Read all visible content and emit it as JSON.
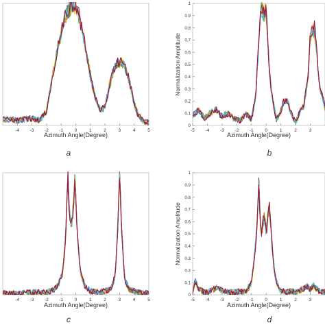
{
  "chart_data": [
    {
      "panel": "a",
      "type": "line",
      "caption": "a",
      "title": "",
      "xlabel": "Azimuth Angle(Degree)",
      "ylabel": "",
      "xlim": [
        -5,
        5
      ],
      "ylim": [
        0,
        1
      ],
      "xticks": [
        -4,
        -3,
        -2,
        -1,
        0,
        1,
        2,
        3,
        4,
        5
      ],
      "xtick_labels": [
        "-4",
        "-3",
        "-2",
        "-1",
        "0",
        "1",
        "2",
        "3",
        "4",
        "5"
      ],
      "yticks": [],
      "ytick_labels": [],
      "grid": false,
      "n_series": 7,
      "series_colors": [
        "#0072bd",
        "#d95319",
        "#edb120",
        "#7e2f8e",
        "#77ac30",
        "#4dbeee",
        "#a2142f"
      ],
      "envelope": {
        "x": [
          -5,
          -4.5,
          -4,
          -3.5,
          -3,
          -2.5,
          -2,
          -1.6,
          -1.2,
          -0.8,
          -0.5,
          -0.3,
          0,
          0.2,
          0.5,
          0.8,
          1.1,
          1.4,
          1.7,
          2,
          2.3,
          2.6,
          2.9,
          3.1,
          3.4,
          3.7,
          4,
          4.3,
          4.6,
          5
        ],
        "y": [
          0.05,
          0.05,
          0.04,
          0.05,
          0.06,
          0.04,
          0.12,
          0.4,
          0.65,
          0.85,
          0.95,
          0.99,
          0.97,
          0.9,
          0.75,
          0.55,
          0.35,
          0.2,
          0.12,
          0.15,
          0.32,
          0.46,
          0.52,
          0.52,
          0.47,
          0.35,
          0.18,
          0.08,
          0.04,
          0.02
        ]
      }
    },
    {
      "panel": "b",
      "type": "line",
      "caption": "b",
      "title": "",
      "xlabel": "Azimuth Angle(Degree)",
      "ylabel": "Normalization Amplitude",
      "xlim": [
        -5,
        4
      ],
      "ylim": [
        0,
        1
      ],
      "xticks": [
        -5,
        -4,
        -3,
        -2,
        -1,
        0,
        1,
        2,
        3
      ],
      "xtick_labels": [
        "-5",
        "-4",
        "-3",
        "-2",
        "-1",
        "0",
        "1",
        "2",
        "3"
      ],
      "yticks": [
        0,
        0.1,
        0.2,
        0.3,
        0.4,
        0.5,
        0.6,
        0.7,
        0.8,
        0.9,
        1
      ],
      "ytick_labels": [
        "0",
        "0.1",
        "0.2",
        "0.3",
        "0.4",
        "0.5",
        "0.6",
        "0.7",
        "0.8",
        "0.9",
        "1"
      ],
      "grid": false,
      "n_series": 7,
      "series_colors": [
        "#0072bd",
        "#d95319",
        "#edb120",
        "#7e2f8e",
        "#77ac30",
        "#4dbeee",
        "#a2142f"
      ],
      "envelope": {
        "x": [
          -5,
          -4.6,
          -4.2,
          -3.8,
          -3.4,
          -3,
          -2.6,
          -2.2,
          -1.8,
          -1.4,
          -1,
          -0.7,
          -0.5,
          -0.35,
          -0.2,
          0,
          0.1,
          0.25,
          0.45,
          0.7,
          0.95,
          1.2,
          1.45,
          1.7,
          2,
          2.3,
          2.55,
          2.85,
          3,
          3.3,
          3.6,
          4
        ],
        "y": [
          0.08,
          0.12,
          0.06,
          0.1,
          0.13,
          0.07,
          0.1,
          0.06,
          0.04,
          0.1,
          0.05,
          0.25,
          0.7,
          0.97,
          0.92,
          0.95,
          0.7,
          0.4,
          0.2,
          0.05,
          0.1,
          0.2,
          0.2,
          0.1,
          0.02,
          0.12,
          0.15,
          0.4,
          0.75,
          0.8,
          0.35,
          0.15
        ]
      }
    },
    {
      "panel": "c",
      "type": "line",
      "caption": "c",
      "title": "",
      "xlabel": "Azimuth Angle(Degree)",
      "ylabel": "",
      "xlim": [
        -5,
        5
      ],
      "ylim": [
        0,
        1
      ],
      "xticks": [
        -4,
        -3,
        -2,
        -1,
        0,
        1,
        2,
        3,
        4,
        5
      ],
      "xtick_labels": [
        "-4",
        "-3",
        "-2",
        "-1",
        "0",
        "1",
        "2",
        "3",
        "4",
        "5"
      ],
      "yticks": [],
      "ytick_labels": [],
      "grid": false,
      "n_series": 7,
      "series_colors": [
        "#0072bd",
        "#d95319",
        "#edb120",
        "#7e2f8e",
        "#77ac30",
        "#4dbeee",
        "#a2142f"
      ],
      "envelope": {
        "x": [
          -5,
          -4,
          -3,
          -2,
          -1.5,
          -1.2,
          -0.9,
          -0.7,
          -0.55,
          -0.45,
          -0.3,
          -0.15,
          -0.05,
          0.1,
          0.3,
          0.6,
          1,
          1.5,
          2,
          2.4,
          2.7,
          2.85,
          3,
          3.15,
          3.35,
          3.7,
          4.2,
          5
        ],
        "y": [
          0.01,
          0.01,
          0.02,
          0.02,
          0.04,
          0.08,
          0.18,
          0.45,
          1,
          0.7,
          0.55,
          0.75,
          0.98,
          0.5,
          0.2,
          0.08,
          0.03,
          0.02,
          0.03,
          0.05,
          0.15,
          0.5,
          0.98,
          0.5,
          0.12,
          0.04,
          0.02,
          0.01
        ]
      }
    },
    {
      "panel": "d",
      "type": "line",
      "caption": "d",
      "title": "",
      "xlabel": "Azimuth Angle(Degree)",
      "ylabel": "Normalization Amplitude",
      "xlim": [
        -5,
        4
      ],
      "ylim": [
        0,
        1
      ],
      "xticks": [
        -5,
        -4,
        -3,
        -2,
        -1,
        0,
        1,
        2,
        3
      ],
      "xtick_labels": [
        "-5",
        "-4",
        "-3",
        "-2",
        "-1",
        "0",
        "1",
        "2",
        "3"
      ],
      "yticks": [
        0,
        0.1,
        0.2,
        0.3,
        0.4,
        0.5,
        0.6,
        0.7,
        0.8,
        0.9,
        1
      ],
      "ytick_labels": [
        "0",
        "0.1",
        "0.2",
        "0.3",
        "0.4",
        "0.5",
        "0.6",
        "0.7",
        "0.8",
        "0.9",
        "1"
      ],
      "grid": false,
      "n_series": 7,
      "series_colors": [
        "#0072bd",
        "#d95319",
        "#edb120",
        "#7e2f8e",
        "#77ac30",
        "#4dbeee",
        "#a2142f"
      ],
      "envelope": {
        "x": [
          -5,
          -4.8,
          -4.6,
          -4.2,
          -3.8,
          -3.4,
          -3,
          -2.6,
          -2.2,
          -1.8,
          -1.4,
          -1,
          -0.8,
          -0.6,
          -0.5,
          -0.4,
          -0.3,
          -0.2,
          -0.1,
          0,
          0.2,
          0.4,
          0.6,
          0.9,
          1.3,
          1.7,
          2.1,
          2.5,
          2.8,
          3,
          3.2,
          3.6,
          4
        ],
        "y": [
          0.02,
          0.12,
          0.05,
          0.02,
          0.03,
          0.06,
          0.04,
          0.02,
          0.02,
          0.03,
          0.02,
          0.1,
          0.3,
          0.6,
          0.95,
          0.55,
          0.5,
          0.6,
          0.65,
          0.5,
          0.75,
          0.4,
          0.15,
          0.04,
          0.02,
          0.03,
          0.02,
          0.05,
          0.07,
          0.04,
          0.08,
          0.03,
          0.02
        ]
      }
    }
  ]
}
